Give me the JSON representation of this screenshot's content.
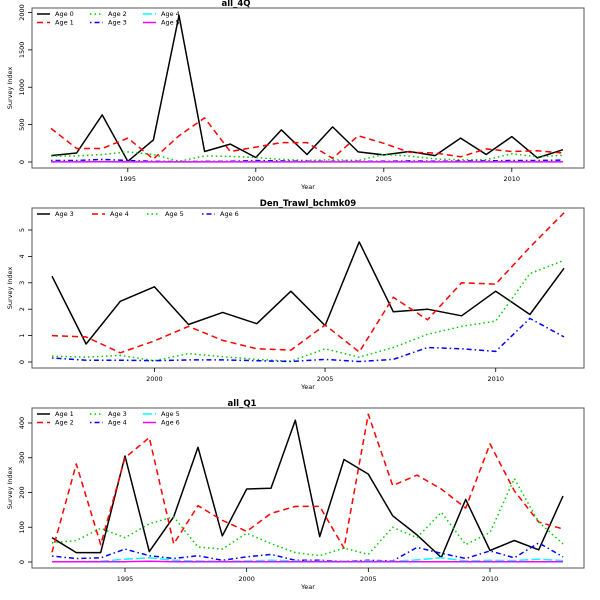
{
  "chart_data": [
    {
      "type": "line",
      "title": "all_4Q",
      "xlabel": "Year",
      "ylabel": "Survey Index",
      "xlim": [
        1992,
        2012
      ],
      "ylim": [
        0,
        2000
      ],
      "xticks": [
        1995,
        2000,
        2005,
        2010
      ],
      "yticks": [
        0,
        500,
        1000,
        1500,
        2000
      ],
      "legend": "top-left",
      "legend_columns": 3,
      "x": [
        1992,
        1993,
        1994,
        1995,
        1996,
        1997,
        1998,
        1999,
        2000,
        2001,
        2002,
        2003,
        2004,
        2005,
        2006,
        2007,
        2008,
        2009,
        2010,
        2011,
        2012
      ],
      "series": [
        {
          "name": "Age 0",
          "color": "#000000",
          "style": "solid",
          "values": [
            85,
            120,
            630,
            10,
            295,
            1960,
            140,
            240,
            60,
            430,
            100,
            470,
            135,
            95,
            140,
            85,
            320,
            100,
            340,
            55,
            165
          ]
        },
        {
          "name": "Age 1",
          "color": "#ff0000",
          "style": "dashed",
          "values": [
            450,
            180,
            180,
            320,
            40,
            350,
            590,
            140,
            200,
            260,
            260,
            50,
            350,
            250,
            130,
            120,
            70,
            175,
            140,
            150,
            120
          ]
        },
        {
          "name": "Age 2",
          "color": "#00cd00",
          "style": "dotted",
          "values": [
            80,
            80,
            100,
            135,
            100,
            10,
            80,
            75,
            60,
            35,
            20,
            30,
            20,
            100,
            80,
            40,
            30,
            30,
            110,
            70,
            90
          ]
        },
        {
          "name": "Age 3",
          "color": "#0000ff",
          "style": "dotdash",
          "values": [
            20,
            20,
            35,
            20,
            10,
            5,
            8,
            10,
            20,
            15,
            10,
            8,
            8,
            10,
            15,
            10,
            12,
            15,
            20,
            20,
            25
          ]
        },
        {
          "name": "Age 4",
          "color": "#00ffff",
          "style": "longdash",
          "values": [
            5,
            5,
            8,
            6,
            4,
            2,
            3,
            4,
            6,
            5,
            4,
            3,
            3,
            4,
            5,
            4,
            4,
            5,
            6,
            5,
            6
          ]
        },
        {
          "name": "Age 5",
          "color": "#ff00ff",
          "style": "solid",
          "values": [
            2,
            2,
            3,
            2,
            2,
            1,
            1,
            2,
            2,
            2,
            1,
            1,
            1,
            2,
            2,
            1,
            2,
            2,
            2,
            2,
            2
          ]
        }
      ]
    },
    {
      "type": "line",
      "title": "Den_Trawl_bchmk09",
      "xlabel": "Year",
      "ylabel": "Survey Index",
      "xlim": [
        1997,
        2012
      ],
      "ylim": [
        0,
        5.65
      ],
      "xticks": [
        2000,
        2005,
        2010
      ],
      "yticks": [
        0,
        1,
        2,
        3,
        4,
        5
      ],
      "legend": "top-left",
      "legend_columns": 4,
      "x": [
        1997,
        1998,
        1999,
        2000,
        2001,
        2002,
        2003,
        2004,
        2005,
        2006,
        2007,
        2008,
        2009,
        2010,
        2011,
        2012
      ],
      "series": [
        {
          "name": "Age 3",
          "color": "#000000",
          "style": "solid",
          "values": [
            3.25,
            0.68,
            2.3,
            2.85,
            1.42,
            1.88,
            1.45,
            2.68,
            1.38,
            4.55,
            1.9,
            2.0,
            1.75,
            2.68,
            1.8,
            3.55
          ]
        },
        {
          "name": "Age 4",
          "color": "#ff0000",
          "style": "dashed",
          "values": [
            1.0,
            0.95,
            0.35,
            0.8,
            1.35,
            0.82,
            0.5,
            0.45,
            1.4,
            0.38,
            2.45,
            1.6,
            3.0,
            2.95,
            4.35,
            5.65
          ]
        },
        {
          "name": "Age 5",
          "color": "#00cd00",
          "style": "dotted",
          "values": [
            0.22,
            0.18,
            0.25,
            0.05,
            0.32,
            0.2,
            0.1,
            0.03,
            0.5,
            0.18,
            0.55,
            1.05,
            1.35,
            1.55,
            3.35,
            3.85
          ]
        },
        {
          "name": "Age 6",
          "color": "#0000ff",
          "style": "dotdash",
          "values": [
            0.15,
            0.07,
            0.07,
            0.05,
            0.08,
            0.08,
            0.05,
            0.02,
            0.1,
            0.02,
            0.1,
            0.55,
            0.5,
            0.4,
            1.65,
            0.95
          ]
        }
      ]
    },
    {
      "type": "line",
      "title": "all_Q1",
      "xlabel": "Year",
      "ylabel": "Survey Index",
      "xlim": [
        1992,
        2013
      ],
      "ylim": [
        0,
        425
      ],
      "xticks": [
        1995,
        2000,
        2005,
        2010
      ],
      "yticks": [
        0,
        100,
        200,
        300,
        400
      ],
      "legend": "top-left",
      "legend_columns": 3,
      "x": [
        1992,
        1993,
        1994,
        1995,
        1996,
        1997,
        1998,
        1999,
        2000,
        2001,
        2002,
        2003,
        2004,
        2005,
        2006,
        2007,
        2008,
        2009,
        2010,
        2011,
        2012,
        2013
      ],
      "series": [
        {
          "name": "Age 1",
          "color": "#000000",
          "style": "solid",
          "values": [
            70,
            27,
            27,
            305,
            30,
            130,
            330,
            75,
            210,
            212,
            408,
            73,
            295,
            253,
            133,
            78,
            13,
            180,
            33,
            62,
            35,
            190
          ]
        },
        {
          "name": "Age 2",
          "color": "#ff0000",
          "style": "dashed",
          "values": [
            28,
            282,
            50,
            300,
            358,
            52,
            162,
            120,
            88,
            140,
            160,
            160,
            40,
            425,
            220,
            250,
            210,
            155,
            340,
            205,
            115,
            95
          ]
        },
        {
          "name": "Age 3",
          "color": "#00cd00",
          "style": "dotted",
          "values": [
            55,
            62,
            97,
            70,
            110,
            130,
            43,
            37,
            83,
            53,
            27,
            18,
            40,
            22,
            100,
            70,
            143,
            50,
            85,
            240,
            115,
            52
          ]
        },
        {
          "name": "Age 4",
          "color": "#0000ff",
          "style": "dotdash",
          "values": [
            17,
            10,
            12,
            37,
            18,
            10,
            18,
            5,
            15,
            22,
            5,
            5,
            2,
            5,
            3,
            42,
            25,
            10,
            32,
            12,
            55,
            15
          ]
        },
        {
          "name": "Age 5",
          "color": "#00ffff",
          "style": "longdash",
          "values": [
            1,
            1,
            2,
            8,
            12,
            5,
            3,
            2,
            3,
            5,
            3,
            2,
            2,
            3,
            2,
            6,
            12,
            3,
            5,
            4,
            8,
            4
          ]
        },
        {
          "name": "Age 6",
          "color": "#ff00ff",
          "style": "solid",
          "values": [
            1,
            1,
            1,
            1,
            2,
            1,
            1,
            1,
            1,
            1,
            1,
            1,
            1,
            1,
            1,
            1,
            1,
            1,
            1,
            1,
            1,
            1
          ]
        }
      ]
    }
  ]
}
